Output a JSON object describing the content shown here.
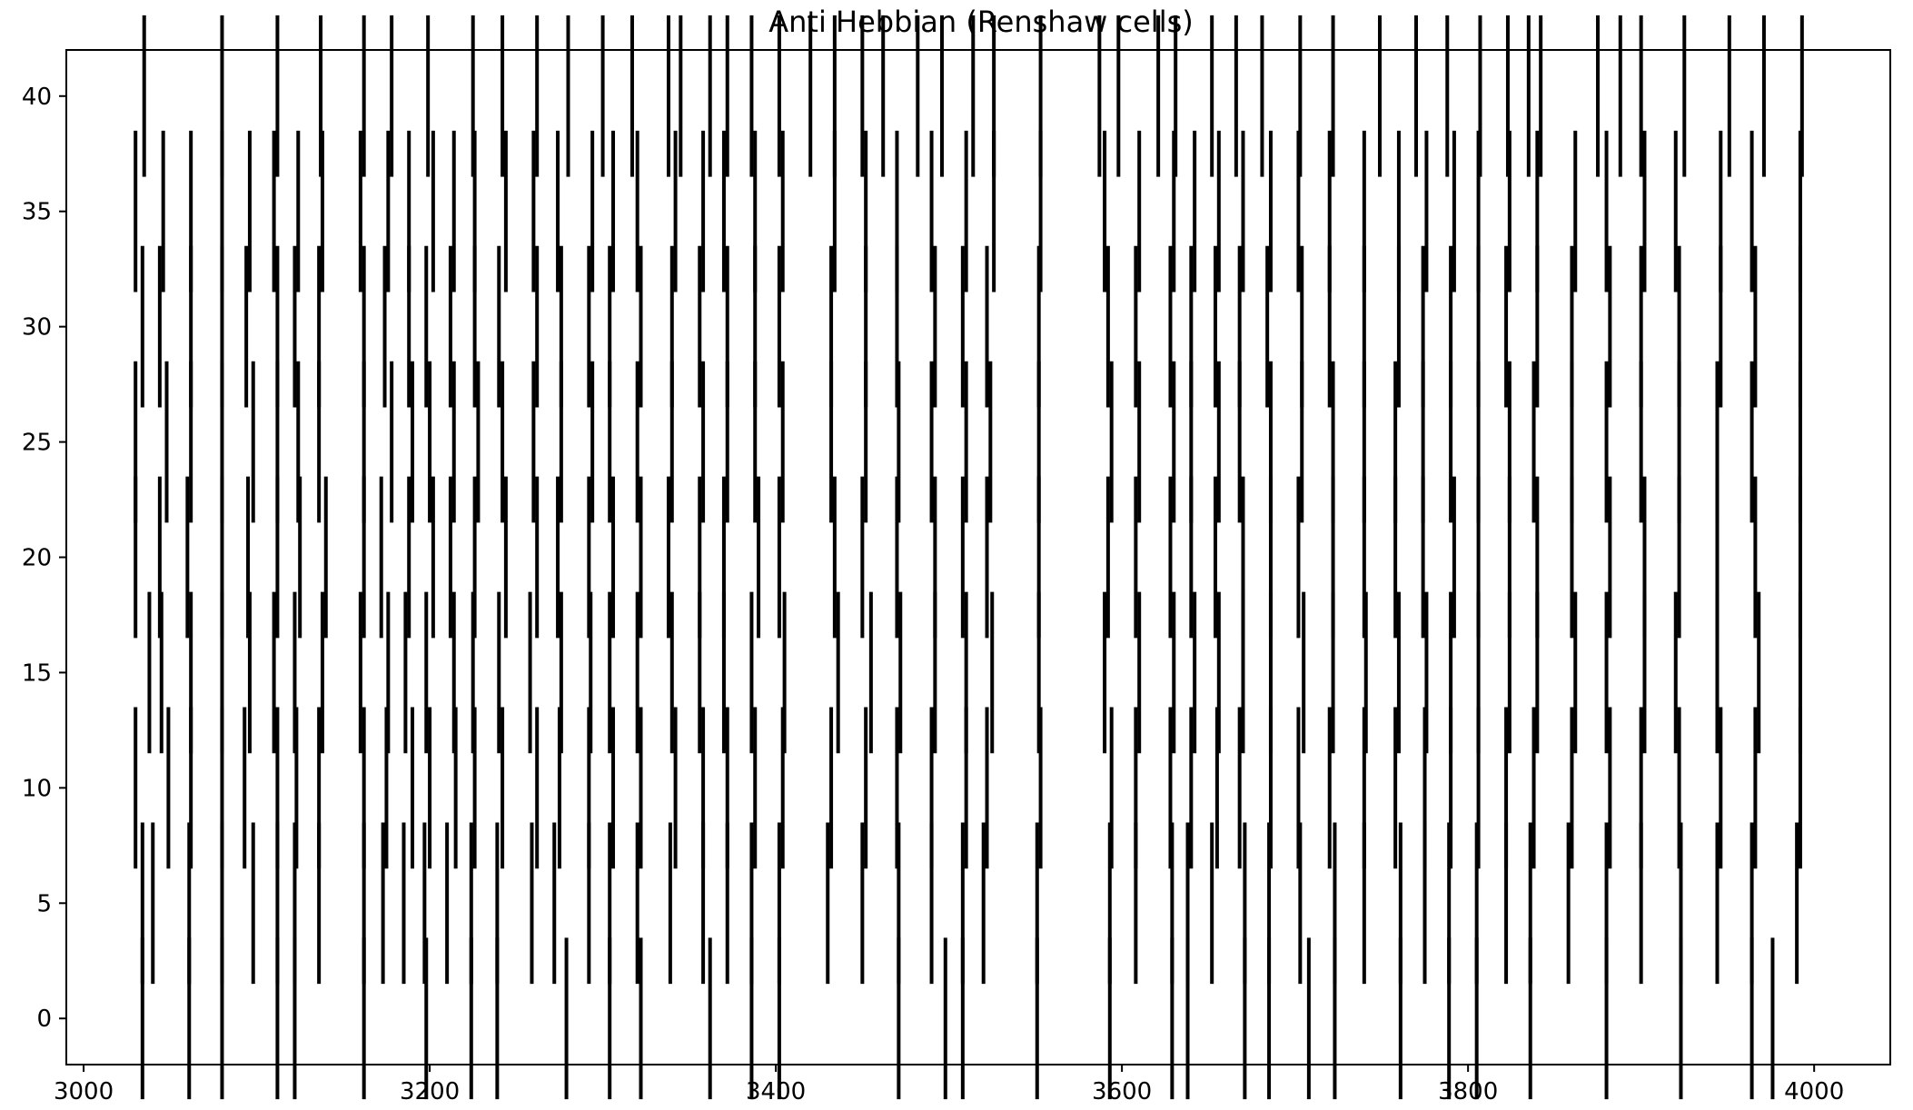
{
  "chart_data": {
    "type": "scatter",
    "subtype": "eventplot",
    "title": "Anti Hebbian (Renshaw cells)",
    "xlabel": "",
    "ylabel": "",
    "xlim": [
      2990,
      4044
    ],
    "ylim": [
      -2,
      42
    ],
    "xticks": [
      3000,
      3200,
      3400,
      3600,
      3800,
      4000
    ],
    "yticks": [
      0,
      5,
      10,
      15,
      20,
      25,
      30,
      35,
      40
    ],
    "color": "#000000",
    "grid": false,
    "legend": "none",
    "event_line_length_rows": 1,
    "rows": [
      {
        "y": 0,
        "times": [
          3034,
          3061,
          3080,
          3112,
          3122,
          3162,
          3198,
          3224,
          3239,
          3279,
          3304,
          3322,
          3362,
          3386,
          3402,
          3471,
          3498,
          3508,
          3551,
          3593,
          3629,
          3638,
          3671,
          3685,
          3708,
          3723,
          3761,
          3789,
          3805,
          3836,
          3880,
          3923,
          3964,
          3976
        ]
      },
      {
        "y": 5,
        "times": [
          3034,
          3040,
          3061,
          3080,
          3098,
          3112,
          3122,
          3136,
          3162,
          3173,
          3185,
          3197,
          3210,
          3224,
          3239,
          3259,
          3272,
          3292,
          3304,
          3320,
          3339,
          3358,
          3372,
          3386,
          3402,
          3430,
          3450,
          3471,
          3490,
          3508,
          3520,
          3551,
          3593,
          3608,
          3629,
          3638,
          3652,
          3671,
          3685,
          3703,
          3723,
          3740,
          3761,
          3775,
          3789,
          3805,
          3822,
          3836,
          3858,
          3880,
          3900,
          3923,
          3944,
          3964,
          3990
        ]
      },
      {
        "y": 10,
        "times": [
          3030,
          3049,
          3062,
          3080,
          3093,
          3112,
          3123,
          3136,
          3162,
          3175,
          3190,
          3200,
          3215,
          3226,
          3242,
          3262,
          3275,
          3292,
          3306,
          3322,
          3342,
          3358,
          3372,
          3388,
          3404,
          3432,
          3452,
          3470,
          3490,
          3510,
          3522,
          3553,
          3594,
          3608,
          3628,
          3640,
          3655,
          3668,
          3686,
          3702,
          3720,
          3740,
          3758,
          3775,
          3790,
          3806,
          3822,
          3838,
          3860,
          3882,
          3900,
          3922,
          3946,
          3966,
          3992
        ]
      },
      {
        "y": 15,
        "times": [
          3038,
          3045,
          3062,
          3080,
          3096,
          3110,
          3122,
          3138,
          3160,
          3176,
          3186,
          3198,
          3214,
          3225,
          3240,
          3258,
          3276,
          3293,
          3304,
          3320,
          3340,
          3356,
          3370,
          3386,
          3405,
          3436,
          3455,
          3472,
          3492,
          3510,
          3525,
          3552,
          3590,
          3610,
          3630,
          3642,
          3656,
          3670,
          3686,
          3705,
          3722,
          3741,
          3760,
          3776,
          3790,
          3806,
          3824,
          3840,
          3862,
          3880,
          3902,
          3920,
          3944,
          3968,
          3992
        ]
      },
      {
        "y": 20,
        "times": [
          3030,
          3044,
          3060,
          3080,
          3095,
          3112,
          3125,
          3140,
          3162,
          3172,
          3188,
          3202,
          3212,
          3226,
          3244,
          3262,
          3274,
          3292,
          3306,
          3322,
          3338,
          3356,
          3370,
          3390,
          3402,
          3434,
          3450,
          3470,
          3492,
          3508,
          3522,
          3552,
          3592,
          3608,
          3628,
          3640,
          3654,
          3670,
          3686,
          3702,
          3722,
          3740,
          3758,
          3774,
          3792,
          3806,
          3824,
          3840,
          3860,
          3882,
          3902,
          3922,
          3944,
          3966,
          3992
        ]
      },
      {
        "y": 25,
        "times": [
          3030,
          3048,
          3062,
          3080,
          3098,
          3112,
          3124,
          3136,
          3162,
          3178,
          3190,
          3200,
          3214,
          3228,
          3242,
          3260,
          3276,
          3294,
          3304,
          3320,
          3340,
          3358,
          3372,
          3388,
          3404,
          3432,
          3452,
          3471,
          3490,
          3510,
          3524,
          3552,
          3594,
          3610,
          3630,
          3640,
          3656,
          3668,
          3686,
          3704,
          3722,
          3740,
          3758,
          3774,
          3790,
          3806,
          3824,
          3838,
          3860,
          3880,
          3900,
          3922,
          3944,
          3964,
          3992
        ]
      },
      {
        "y": 30,
        "times": [
          3034,
          3044,
          3062,
          3080,
          3094,
          3112,
          3122,
          3136,
          3162,
          3174,
          3188,
          3198,
          3212,
          3226,
          3240,
          3262,
          3276,
          3292,
          3304,
          3322,
          3340,
          3356,
          3372,
          3388,
          3402,
          3432,
          3452,
          3470,
          3492,
          3508,
          3522,
          3552,
          3592,
          3608,
          3628,
          3640,
          3654,
          3668,
          3684,
          3704,
          3720,
          3740,
          3760,
          3774,
          3790,
          3806,
          3822,
          3840,
          3860,
          3882,
          3900,
          3922,
          3946,
          3966,
          3992
        ]
      },
      {
        "y": 35,
        "times": [
          3030,
          3046,
          3062,
          3080,
          3096,
          3110,
          3124,
          3138,
          3160,
          3176,
          3188,
          3202,
          3214,
          3226,
          3244,
          3260,
          3274,
          3294,
          3306,
          3320,
          3342,
          3358,
          3370,
          3388,
          3404,
          3434,
          3452,
          3470,
          3490,
          3510,
          3526,
          3553,
          3590,
          3610,
          3630,
          3642,
          3656,
          3670,
          3686,
          3702,
          3720,
          3740,
          3760,
          3776,
          3792,
          3806,
          3824,
          3840,
          3862,
          3880,
          3902,
          3920,
          3946,
          3964,
          3992
        ]
      },
      {
        "y": 40,
        "times": [
          3035,
          3080,
          3112,
          3137,
          3162,
          3178,
          3199,
          3225,
          3242,
          3262,
          3280,
          3300,
          3317,
          3338,
          3345,
          3362,
          3372,
          3386,
          3402,
          3420,
          3434,
          3450,
          3462,
          3482,
          3496,
          3514,
          3526,
          3553,
          3587,
          3598,
          3621,
          3631,
          3652,
          3666,
          3681,
          3703,
          3722,
          3749,
          3770,
          3788,
          3807,
          3823,
          3835,
          3842,
          3875,
          3888,
          3900,
          3925,
          3951,
          3971,
          3993
        ]
      }
    ]
  }
}
